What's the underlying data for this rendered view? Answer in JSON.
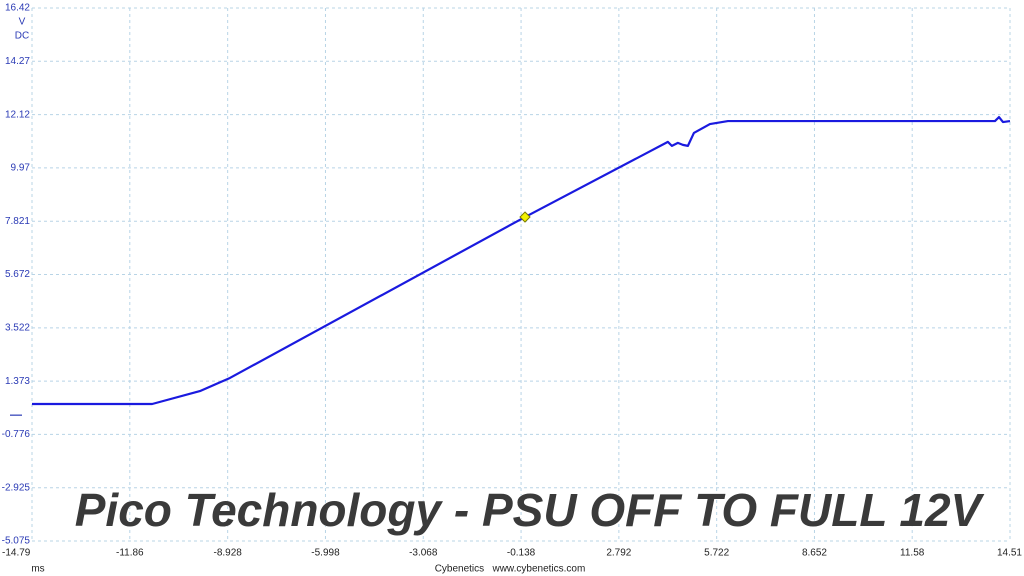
{
  "chart_data": {
    "type": "line",
    "y_unit": "V",
    "y_coupling": "DC",
    "x_unit": "ms",
    "footer": "Cybenetics   www.cybenetics.com",
    "watermark": "Pico Technology - PSU OFF TO FULL 12V",
    "x": [
      -14.79,
      -11.19,
      -9.76,
      -8.86,
      -0.02,
      4.26,
      4.38,
      4.56,
      4.71,
      4.86,
      5.04,
      5.52,
      6.06,
      14.06,
      14.18,
      14.3,
      14.51
    ],
    "series": [
      {
        "color": "#1a1adf",
        "values": [
          0.45,
          0.45,
          0.97,
          1.5,
          7.99,
          11.02,
          10.86,
          10.98,
          10.9,
          10.86,
          11.38,
          11.74,
          11.86,
          11.86,
          12.02,
          11.82,
          11.86
        ]
      }
    ],
    "marker": {
      "x": -0.02,
      "y": 7.99,
      "color": "#f2f200"
    },
    "xlim": [
      -14.79,
      14.51
    ],
    "xticks": [
      -14.79,
      -11.86,
      -8.928,
      -5.998,
      -3.068,
      -0.138,
      2.792,
      5.722,
      8.652,
      11.58,
      14.51
    ],
    "ylim": [
      -5.075,
      16.42
    ],
    "yticks": [
      -5.075,
      -2.925,
      -0.776,
      1.373,
      3.522,
      5.672,
      7.821,
      9.97,
      12.12,
      14.27,
      16.42
    ],
    "grid": true
  }
}
